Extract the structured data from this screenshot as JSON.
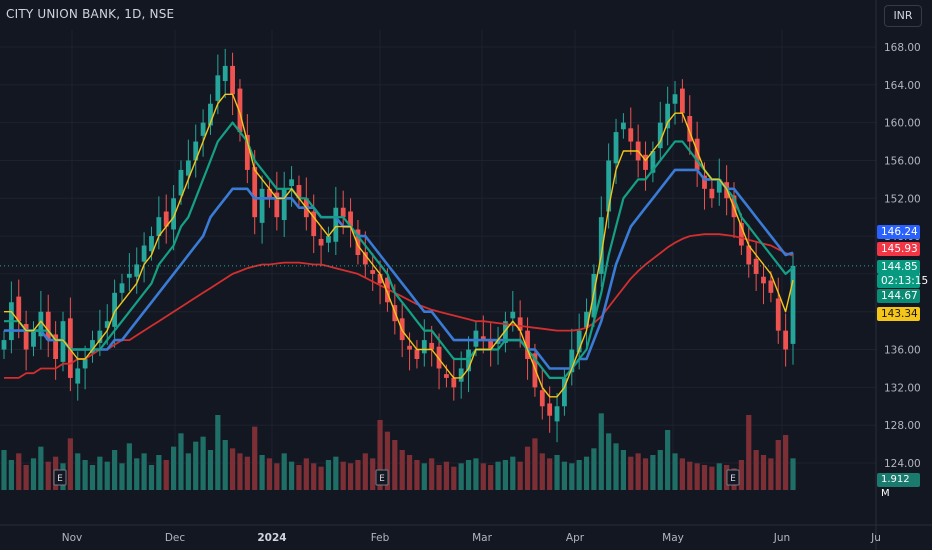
{
  "header": {
    "symbol": "CITY UNION BANK, 1D, NSE",
    "currency": "INR"
  },
  "colors": {
    "background": "#131722",
    "up": "#26a69a",
    "down": "#ef5350",
    "ema_fast": "#f5c518",
    "ema_mid": "#14a085",
    "ema_slow": "#3a7bd5",
    "ema_long": "#d32f2f",
    "grid": "#1e222d",
    "axis_text": "#b2b5be"
  },
  "price_tags": {
    "blue": "146.24",
    "red": "145.93",
    "last": "144.85",
    "countdown": "02:13:15",
    "green": "144.67",
    "yellow": "143.34",
    "volume": "1.912 M"
  },
  "earnings_markers": [
    "E",
    "E",
    "E",
    "E"
  ],
  "chart_data": {
    "type": "candlestick",
    "title": "CITY UNION BANK, 1D, NSE",
    "x_labels": [
      "Nov",
      "Dec",
      "2024",
      "Feb",
      "Mar",
      "Apr",
      "May",
      "Jun",
      "Ju"
    ],
    "y_ticks": [
      "168.00",
      "164.00",
      "160.00",
      "156.00",
      "152.00",
      "148.00",
      "144.00",
      "140.00",
      "136.00",
      "132.00",
      "128.00",
      "124.00"
    ],
    "ylim": [
      122,
      170
    ],
    "grid": true,
    "series": [
      {
        "name": "close",
        "values": [
          137,
          141,
          139,
          136,
          138,
          140,
          137,
          135,
          139,
          133,
          134,
          135,
          137,
          138,
          139,
          142,
          143,
          144,
          145,
          147,
          148,
          150,
          149,
          152,
          155,
          156,
          158,
          160,
          162,
          165,
          166,
          163,
          159,
          155,
          150,
          153,
          152,
          150,
          153,
          154,
          152,
          150,
          148,
          147,
          148,
          151,
          150,
          149,
          146,
          145,
          144,
          143,
          141,
          139,
          137,
          136,
          135,
          137,
          136,
          134,
          133,
          132,
          134,
          136,
          138,
          137,
          136,
          137,
          139,
          140,
          138,
          135,
          132,
          130,
          129,
          130,
          133,
          136,
          138,
          140,
          144,
          150,
          156,
          159,
          160,
          158,
          156,
          155,
          157,
          160,
          162,
          163,
          161,
          158,
          155,
          153,
          152,
          154,
          152,
          150,
          147,
          145,
          144,
          143,
          142,
          138,
          136,
          144.85
        ]
      },
      {
        "name": "ema_fast",
        "values": [
          140,
          140,
          139,
          138,
          138,
          139,
          138,
          137,
          137,
          136,
          135,
          135,
          136,
          137,
          138,
          140,
          141,
          142,
          143,
          145,
          146,
          148,
          149,
          150,
          152,
          154,
          156,
          158,
          160,
          162,
          163,
          163,
          161,
          158,
          155,
          154,
          153,
          152,
          152,
          153,
          152,
          151,
          150,
          149,
          148,
          149,
          149,
          149,
          147,
          146,
          145,
          144,
          142,
          140,
          138,
          137,
          136,
          136,
          136,
          135,
          134,
          133,
          133,
          134,
          136,
          136,
          136,
          137,
          138,
          139,
          138,
          136,
          134,
          132,
          131,
          131,
          132,
          134,
          136,
          138,
          142,
          146,
          151,
          155,
          157,
          157,
          157,
          156,
          157,
          158,
          160,
          161,
          161,
          159,
          157,
          155,
          154,
          154,
          153,
          151,
          149,
          147,
          146,
          145,
          144,
          142,
          140,
          143.34
        ]
      },
      {
        "name": "ema_mid",
        "values": [
          139,
          139,
          139,
          138,
          138,
          138,
          138,
          137,
          137,
          136,
          136,
          136,
          136,
          136,
          137,
          138,
          139,
          140,
          141,
          142,
          143,
          145,
          146,
          147,
          149,
          150,
          152,
          154,
          156,
          158,
          159,
          160,
          159,
          158,
          156,
          155,
          154,
          153,
          153,
          153,
          152,
          152,
          151,
          150,
          150,
          150,
          150,
          149,
          148,
          147,
          146,
          145,
          144,
          142,
          141,
          140,
          139,
          138,
          138,
          137,
          136,
          135,
          135,
          135,
          136,
          136,
          136,
          136,
          137,
          137,
          137,
          136,
          135,
          134,
          133,
          133,
          133,
          134,
          135,
          136,
          139,
          142,
          146,
          149,
          152,
          153,
          154,
          154,
          155,
          156,
          157,
          158,
          158,
          157,
          156,
          155,
          154,
          154,
          153,
          152,
          150,
          149,
          148,
          147,
          146,
          145,
          144,
          144.67
        ]
      },
      {
        "name": "ema_slow",
        "values": [
          138,
          138,
          138,
          138,
          138,
          138,
          137,
          137,
          137,
          136,
          136,
          136,
          136,
          136,
          136,
          137,
          137,
          138,
          139,
          140,
          141,
          142,
          143,
          144,
          145,
          146,
          147,
          148,
          150,
          151,
          152,
          153,
          153,
          153,
          152,
          152,
          152,
          152,
          152,
          152,
          151,
          151,
          151,
          150,
          150,
          150,
          149,
          149,
          148,
          148,
          147,
          146,
          145,
          144,
          143,
          142,
          141,
          140,
          140,
          139,
          138,
          137,
          137,
          137,
          137,
          137,
          137,
          137,
          137,
          137,
          137,
          136,
          136,
          135,
          134,
          134,
          134,
          134,
          135,
          135,
          137,
          139,
          142,
          145,
          147,
          149,
          150,
          151,
          152,
          153,
          154,
          155,
          155,
          155,
          155,
          154,
          154,
          154,
          153,
          153,
          152,
          151,
          150,
          149,
          148,
          147,
          146,
          146.24
        ]
      },
      {
        "name": "ema_long",
        "values": [
          133,
          133,
          133,
          133.5,
          133.5,
          134,
          134,
          134,
          134.5,
          134.5,
          135,
          135,
          135.5,
          136,
          136,
          136.5,
          137,
          137,
          137.5,
          138,
          138.5,
          139,
          139.5,
          140,
          140.5,
          141,
          141.5,
          142,
          142.5,
          143,
          143.5,
          144,
          144.3,
          144.6,
          144.8,
          145,
          145,
          145.1,
          145.2,
          145.2,
          145.2,
          145.1,
          145,
          145,
          144.8,
          144.6,
          144.4,
          144.2,
          144,
          143.6,
          143.2,
          142.8,
          142.4,
          142,
          141.6,
          141.2,
          140.8,
          140.5,
          140.2,
          140,
          139.8,
          139.6,
          139.4,
          139.2,
          139,
          139,
          138.9,
          138.8,
          138.7,
          138.6,
          138.5,
          138.4,
          138.3,
          138.2,
          138.1,
          138,
          138,
          138,
          138.1,
          138.3,
          138.8,
          139.5,
          140.5,
          141.5,
          142.5,
          143.5,
          144.3,
          145,
          145.6,
          146.2,
          146.8,
          147.3,
          147.7,
          148,
          148.1,
          148.2,
          148.2,
          148.2,
          148.1,
          148,
          147.8,
          147.6,
          147.4,
          147.2,
          147,
          146.6,
          146.2,
          145.93
        ]
      }
    ],
    "volume_values": [
      2.4,
      1.8,
      2.2,
      1.5,
      1.9,
      2.6,
      1.7,
      2.0,
      1.6,
      3.1,
      2.2,
      1.8,
      1.5,
      2.0,
      1.7,
      2.4,
      1.6,
      2.8,
      1.9,
      2.2,
      1.5,
      2.1,
      1.8,
      2.6,
      3.4,
      2.2,
      2.9,
      3.2,
      2.4,
      4.5,
      3.0,
      2.5,
      2.2,
      2.0,
      3.8,
      2.1,
      1.9,
      1.6,
      2.2,
      1.7,
      1.5,
      1.9,
      1.6,
      1.4,
      1.8,
      2.0,
      1.7,
      1.6,
      1.8,
      2.2,
      1.9,
      4.2,
      3.5,
      3.0,
      2.4,
      2.1,
      1.8,
      1.6,
      1.9,
      1.5,
      1.7,
      1.4,
      1.6,
      1.8,
      1.9,
      1.6,
      1.5,
      1.7,
      1.8,
      2.0,
      1.7,
      2.6,
      3.1,
      2.2,
      1.9,
      2.1,
      1.7,
      1.6,
      1.8,
      2.0,
      2.5,
      4.6,
      3.4,
      2.8,
      2.4,
      2.0,
      2.2,
      1.9,
      2.1,
      2.4,
      3.6,
      2.2,
      1.9,
      1.7,
      1.6,
      1.5,
      1.4,
      1.6,
      1.5,
      1.3,
      1.8,
      4.5,
      2.4,
      2.1,
      1.9,
      3.0,
      3.3,
      1.9
    ],
    "volume_last": "1.912 M",
    "last_price": "144.85"
  }
}
